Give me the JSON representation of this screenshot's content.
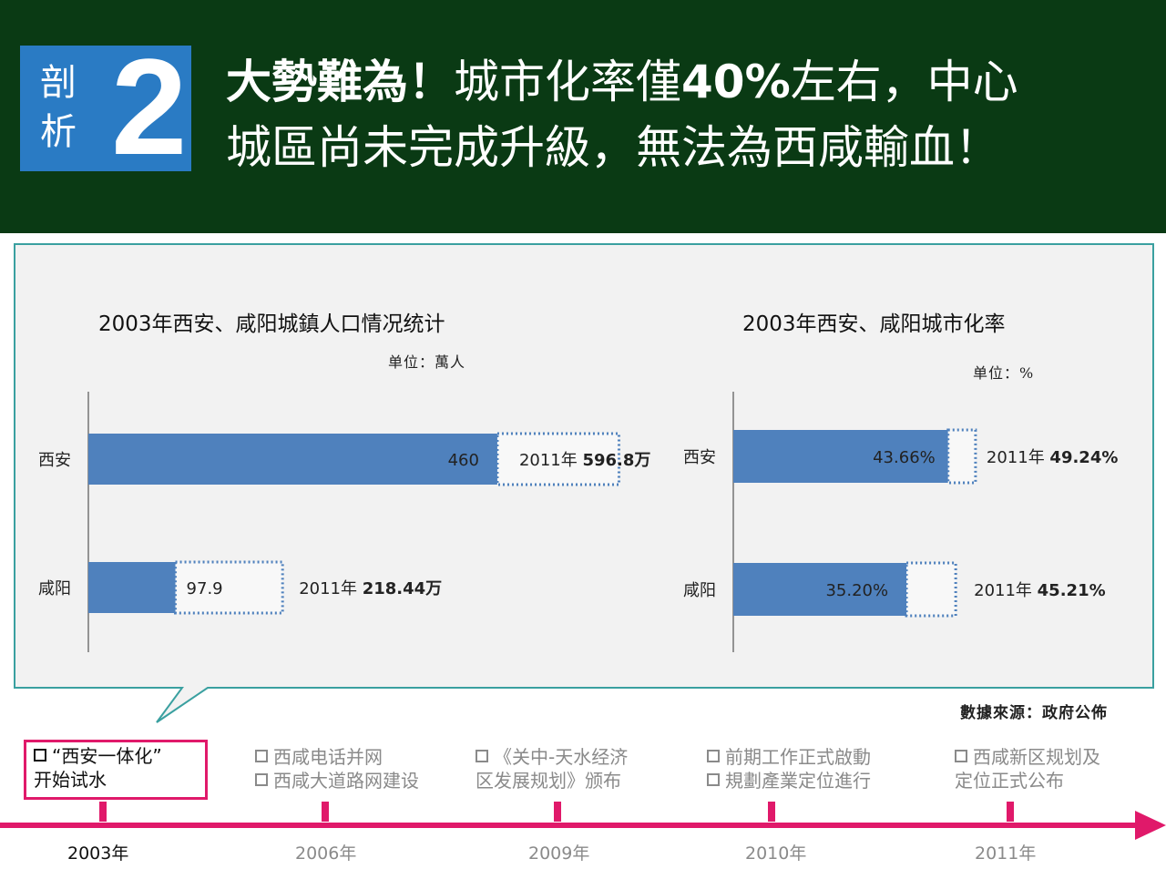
{
  "header": {
    "badge_chars": [
      "剖",
      "析"
    ],
    "badge_number": "2",
    "title_bold_1": "大勢難為！",
    "title_part_2": "城市化率僅",
    "title_bold_3": "40%",
    "title_part_4": "左右，中心",
    "title_line_2": "城區尚未完成升級，無法為西咸輸血！"
  },
  "colors": {
    "header_bg": "#0a3a14",
    "badge_bg": "#2a7bc4",
    "bar_fill": "#4f81bd",
    "timeline": "#e0196a",
    "panel_bg": "#f2f2f2",
    "panel_border": "#3aa0a0"
  },
  "population_chart": {
    "title": "2003年西安、咸阳城鎮人口情况统计",
    "unit": "单位：萬人"
  },
  "urbanization_chart": {
    "title": "2003年西安、咸阳城市化率",
    "unit": "单位：%"
  },
  "source": "數據來源：政府公佈",
  "chart_data": [
    {
      "type": "bar",
      "orientation": "horizontal",
      "title": "2003年西安、咸阳城鎮人口情况统计",
      "unit": "单位：萬人",
      "categories": [
        "西安",
        "咸阳"
      ],
      "series": [
        {
          "values": [
            460,
            97.9
          ],
          "labels": [
            "460",
            "97.9"
          ],
          "style": "solid"
        },
        {
          "values": [
            596.8,
            218.44
          ],
          "label_prefix": "2011年",
          "labels": [
            "596.8万",
            "218.44万"
          ],
          "style": "dotted-outline"
        }
      ],
      "xlim": [
        0,
        750
      ]
    },
    {
      "type": "bar",
      "orientation": "horizontal",
      "title": "2003年西安、咸阳城市化率",
      "unit": "单位：%",
      "categories": [
        "西安",
        "咸阳"
      ],
      "series": [
        {
          "values": [
            43.66,
            35.2
          ],
          "labels": [
            "43.66%",
            "35.20%"
          ],
          "style": "solid"
        },
        {
          "values": [
            49.24,
            45.21
          ],
          "label_prefix": "2011年",
          "labels": [
            "49.24%",
            "45.21%"
          ],
          "style": "dotted-outline"
        }
      ],
      "xlim": [
        0,
        75
      ]
    }
  ],
  "timeline": {
    "events": [
      {
        "lines": [
          "“西安一体化”",
          "开始试水"
        ],
        "year": "2003年",
        "active": true
      },
      {
        "lines": [
          "西咸电话并网",
          "西咸大道路网建设"
        ],
        "year": "2006年",
        "active": false
      },
      {
        "lines": [
          "《关中-天水经济",
          "区发展规划》颁布"
        ],
        "year": "2009年",
        "active": false
      },
      {
        "lines": [
          "前期工作正式啟動",
          "規劃產業定位進行"
        ],
        "year": "2010年",
        "active": false
      },
      {
        "lines": [
          "西咸新区规划及",
          "定位正式公布"
        ],
        "year": "2011年",
        "active": false
      }
    ]
  }
}
